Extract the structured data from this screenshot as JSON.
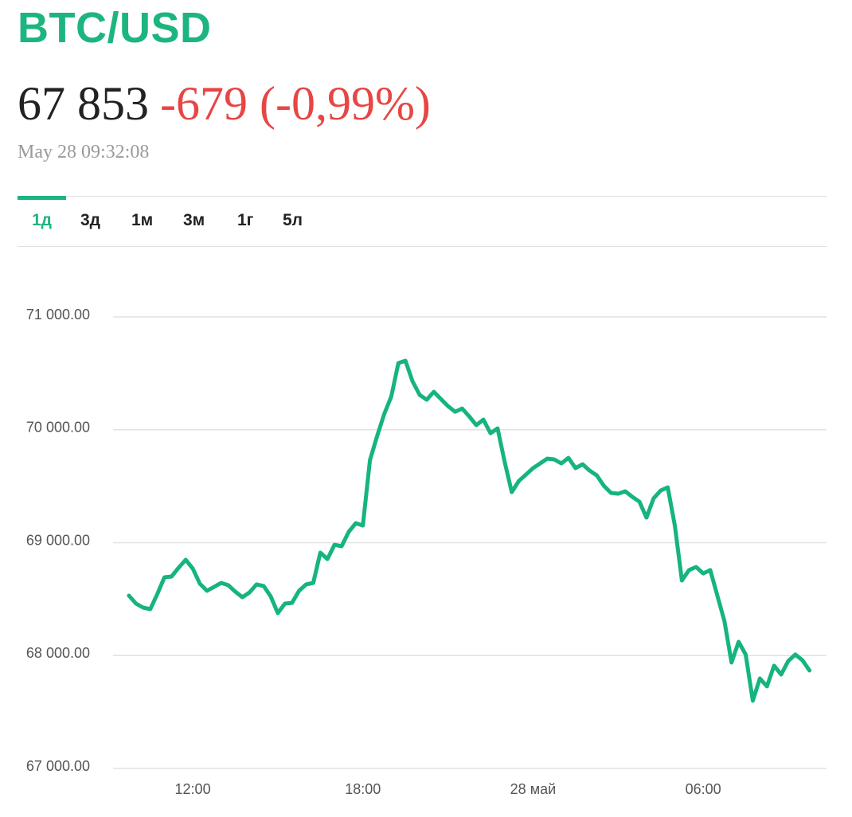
{
  "header": {
    "title": "BTC/USD",
    "price": "67 853",
    "change": "-679 (-0,99%)",
    "timestamp": "May 28 09:32:08"
  },
  "tabs": {
    "items": [
      "1д",
      "3д",
      "1м",
      "3м",
      "1г",
      "5л"
    ],
    "active": 0
  },
  "chart_data": {
    "type": "line",
    "x": [
      9.75,
      10,
      10.25,
      10.5,
      10.75,
      11,
      11.25,
      11.5,
      11.75,
      12,
      12.25,
      12.5,
      12.75,
      13,
      13.25,
      13.5,
      13.75,
      14,
      14.25,
      14.5,
      14.75,
      15,
      15.25,
      15.5,
      15.75,
      16,
      16.25,
      16.5,
      16.75,
      17,
      17.25,
      17.5,
      17.75,
      18,
      18.25,
      18.5,
      18.75,
      19,
      19.25,
      19.5,
      19.75,
      20,
      20.25,
      20.5,
      20.75,
      21,
      21.25,
      21.5,
      21.75,
      22,
      22.25,
      22.5,
      22.75,
      23,
      23.25,
      23.5,
      23.75,
      24,
      24.25,
      24.5,
      24.75,
      25,
      25.25,
      25.5,
      25.75,
      26,
      26.25,
      26.5,
      26.75,
      27,
      27.25,
      27.5,
      27.75,
      28,
      28.25,
      28.5,
      28.75,
      29,
      29.25,
      29.5,
      29.75,
      30,
      30.25,
      30.5,
      30.75,
      31,
      31.25,
      31.5,
      31.75,
      32,
      32.25,
      32.5,
      32.75,
      33,
      33.25,
      33.5,
      33.75
    ],
    "series": [
      {
        "color": "#16b47e",
        "values": [
          68531,
          68460,
          68425,
          68411,
          68545,
          68693,
          68700,
          68778,
          68848,
          68771,
          68637,
          68574,
          68608,
          68644,
          68623,
          68566,
          68517,
          68559,
          68630,
          68616,
          68524,
          68376,
          68460,
          68467,
          68574,
          68630,
          68644,
          68912,
          68855,
          68982,
          68968,
          69095,
          69173,
          69152,
          69730,
          69942,
          70139,
          70295,
          70591,
          70612,
          70429,
          70309,
          70266,
          70337,
          70273,
          70210,
          70160,
          70189,
          70118,
          70041,
          70090,
          69970,
          70012,
          69716,
          69448,
          69547,
          69603,
          69660,
          69702,
          69744,
          69737,
          69702,
          69751,
          69660,
          69695,
          69638,
          69596,
          69504,
          69441,
          69434,
          69455,
          69406,
          69363,
          69222,
          69392,
          69462,
          69490,
          69152,
          68665,
          68757,
          68785,
          68728,
          68757,
          68531,
          68305,
          67938,
          68122,
          68009,
          67600,
          67797,
          67727,
          67910,
          67832,
          67952,
          68009,
          67959,
          67868
        ]
      }
    ],
    "xlim": [
      9.19,
      34.35
    ],
    "xticks": [
      {
        "value": 12,
        "label": "12:00"
      },
      {
        "value": 18,
        "label": "18:00"
      },
      {
        "value": 24,
        "label": "28 май"
      },
      {
        "value": 30,
        "label": "06:00"
      }
    ],
    "ylim": [
      67000,
      71000
    ],
    "yticks": [
      {
        "value": 67000,
        "label": "67 000.00"
      },
      {
        "value": 68000,
        "label": "68 000.00"
      },
      {
        "value": 69000,
        "label": "69 000.00"
      },
      {
        "value": 70000,
        "label": "70 000.00"
      },
      {
        "value": 71000,
        "label": "71 000.00"
      }
    ],
    "grid": true
  }
}
